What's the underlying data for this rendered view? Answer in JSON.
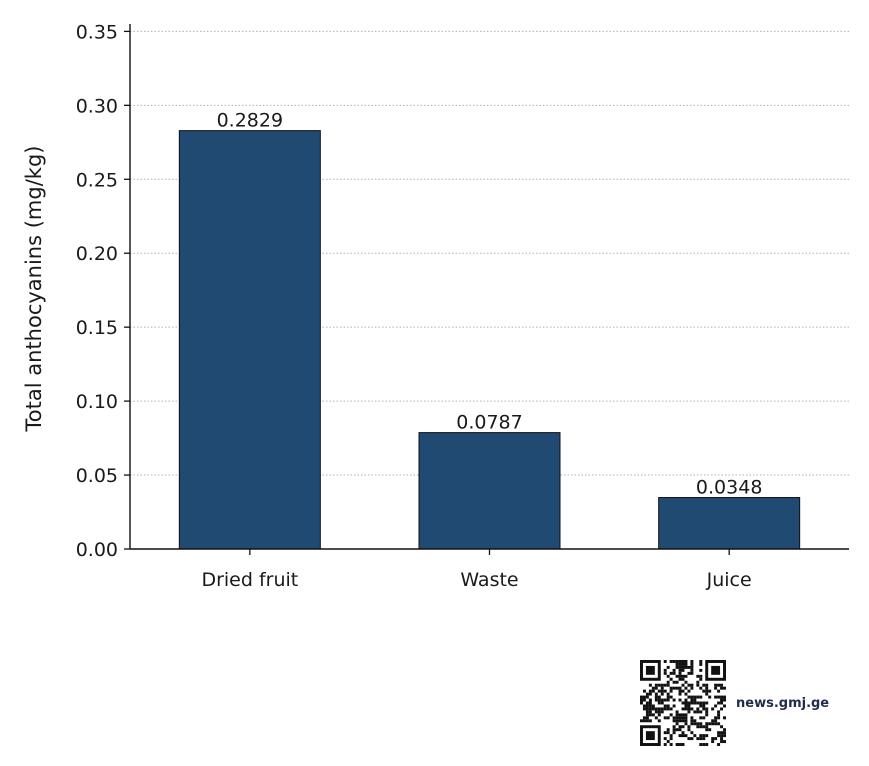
{
  "chart_data": {
    "type": "bar",
    "categories": [
      "Dried fruit",
      "Waste",
      "Juice"
    ],
    "values": [
      0.2829,
      0.0787,
      0.0348
    ],
    "data_labels": [
      "0.2829",
      "0.0787",
      "0.0348"
    ],
    "ylabel": "Total anthocyanins (mg/kg)",
    "xlabel": "",
    "ylim": [
      0,
      0.355
    ],
    "yticks": [
      "0.00",
      "0.05",
      "0.10",
      "0.15",
      "0.20",
      "0.25",
      "0.30",
      "0.35"
    ],
    "grid": "horizontal dotted",
    "bar_color": "#214a73",
    "edge_color": "#111111"
  },
  "footer": {
    "qr_icon": "qr-code-icon",
    "site": "news.gmj.ge"
  }
}
